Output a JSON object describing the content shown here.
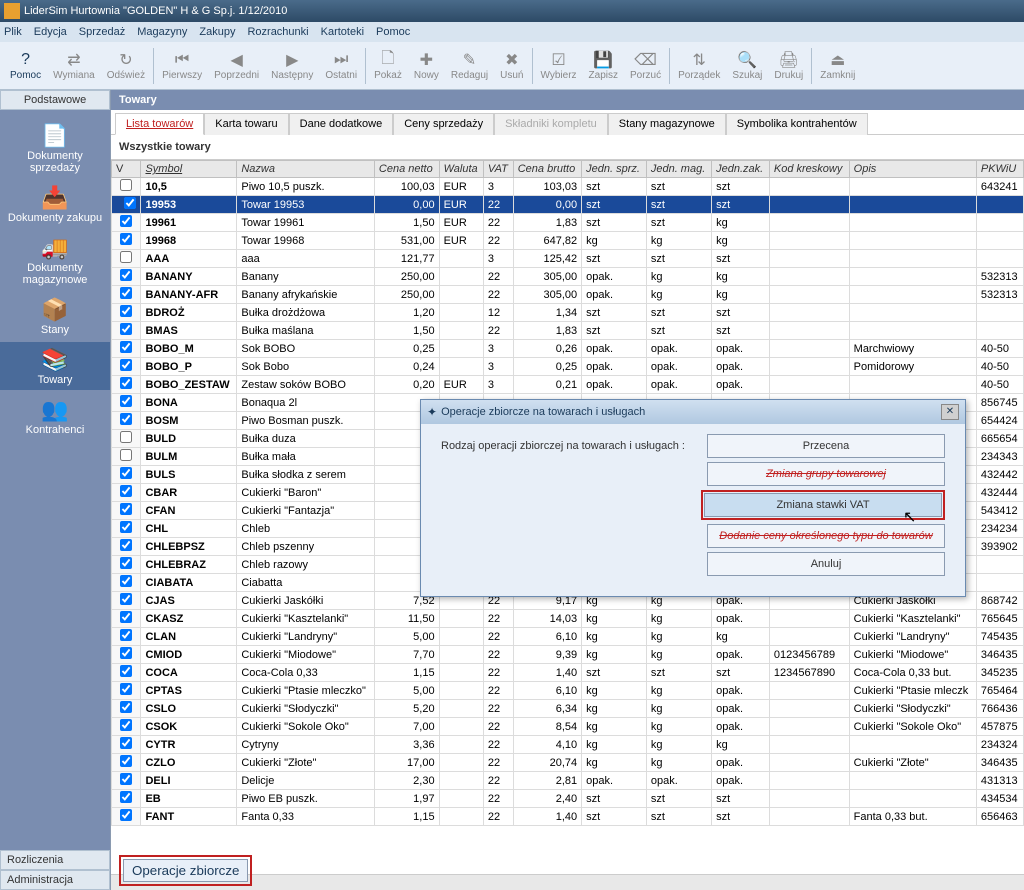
{
  "window": {
    "title": "LiderSim   Hurtownia \"GOLDEN\" H & G Sp.j. 1/12/2010"
  },
  "menu": [
    "Plik",
    "Edycja",
    "Sprzedaż",
    "Magazyny",
    "Zakupy",
    "Rozrachunki",
    "Kartoteki",
    "Pomoc"
  ],
  "toolbar": [
    {
      "label": "Pomoc",
      "active": true,
      "glyph": "?"
    },
    {
      "label": "Wymiana",
      "glyph": "⇄"
    },
    {
      "label": "Odśwież",
      "glyph": "↻"
    },
    {
      "sep": true
    },
    {
      "label": "Pierwszy",
      "glyph": "⏮"
    },
    {
      "label": "Poprzedni",
      "glyph": "◀"
    },
    {
      "label": "Następny",
      "glyph": "▶"
    },
    {
      "label": "Ostatni",
      "glyph": "⏭"
    },
    {
      "sep": true
    },
    {
      "label": "Pokaż",
      "glyph": "🗋"
    },
    {
      "label": "Nowy",
      "glyph": "✚"
    },
    {
      "label": "Redaguj",
      "glyph": "✎"
    },
    {
      "label": "Usuń",
      "glyph": "✖"
    },
    {
      "sep": true
    },
    {
      "label": "Wybierz",
      "glyph": "☑"
    },
    {
      "label": "Zapisz",
      "glyph": "💾"
    },
    {
      "label": "Porzuć",
      "glyph": "⌫"
    },
    {
      "sep": true
    },
    {
      "label": "Porządek",
      "glyph": "⇅"
    },
    {
      "label": "Szukaj",
      "glyph": "🔍"
    },
    {
      "label": "Drukuj",
      "glyph": "🖨"
    },
    {
      "sep": true
    },
    {
      "label": "Zamknij",
      "glyph": "⏏"
    }
  ],
  "sidebar": {
    "header": "Podstawowe",
    "items": [
      {
        "label": "Dokumenty sprzedaży",
        "glyph": "📄"
      },
      {
        "label": "Dokumenty zakupu",
        "glyph": "📥"
      },
      {
        "label": "Dokumenty magazynowe",
        "glyph": "🚚"
      },
      {
        "label": "Stany",
        "glyph": "📦"
      },
      {
        "label": "Towary",
        "glyph": "📚",
        "sel": true
      },
      {
        "label": "Kontrahenci",
        "glyph": "👥"
      }
    ],
    "footer": [
      "Rozliczenia",
      "Administracja"
    ]
  },
  "content": {
    "title": "Towary",
    "tabs": [
      {
        "label": "Lista towarów",
        "active": true
      },
      {
        "label": "Karta towaru"
      },
      {
        "label": "Dane dodatkowe"
      },
      {
        "label": "Ceny sprzedaży"
      },
      {
        "label": "Składniki kompletu",
        "disabled": true
      },
      {
        "label": "Stany magazynowe"
      },
      {
        "label": "Symbolika kontrahentów"
      }
    ],
    "subheader": "Wszystkie towary",
    "columns": [
      "V",
      "Symbol",
      "Nazwa",
      "Cena netto",
      "Waluta",
      "VAT",
      "Cena brutto",
      "Jedn. sprz.",
      "Jedn. mag.",
      "Jedn.zak.",
      "Kod kreskowy",
      "Opis",
      "PKWiU"
    ],
    "rows": [
      {
        "chk": false,
        "sym": "10,5",
        "naz": "Piwo 10,5 puszk.",
        "cn": "100,03",
        "wal": "EUR",
        "vat": "3",
        "cb": "103,03",
        "js": "szt",
        "jm": "szt",
        "jz": "szt",
        "kod": "",
        "opis": "",
        "pk": "643241"
      },
      {
        "chk": true,
        "sel": true,
        "sym": "19953",
        "naz": "Towar 19953",
        "cn": "0,00",
        "wal": "EUR",
        "vat": "22",
        "cb": "0,00",
        "js": "szt",
        "jm": "szt",
        "jz": "szt",
        "kod": "",
        "opis": "",
        "pk": ""
      },
      {
        "chk": true,
        "sym": "19961",
        "naz": "Towar 19961",
        "cn": "1,50",
        "wal": "EUR",
        "vat": "22",
        "cb": "1,83",
        "js": "szt",
        "jm": "szt",
        "jz": "kg",
        "kod": "",
        "opis": "",
        "pk": ""
      },
      {
        "chk": true,
        "sym": "19968",
        "naz": "Towar 19968",
        "cn": "531,00",
        "wal": "EUR",
        "vat": "22",
        "cb": "647,82",
        "js": "kg",
        "jm": "kg",
        "jz": "kg",
        "kod": "",
        "opis": "",
        "pk": ""
      },
      {
        "chk": false,
        "sym": "AAA",
        "naz": "aaa",
        "cn": "121,77",
        "wal": "",
        "vat": "3",
        "cb": "125,42",
        "js": "szt",
        "jm": "szt",
        "jz": "szt",
        "kod": "",
        "opis": "",
        "pk": ""
      },
      {
        "chk": true,
        "sym": "BANANY",
        "naz": "Banany",
        "cn": "250,00",
        "wal": "",
        "vat": "22",
        "cb": "305,00",
        "js": "opak.",
        "jm": "kg",
        "jz": "kg",
        "kod": "",
        "opis": "",
        "pk": "532313"
      },
      {
        "chk": true,
        "sym": "BANANY-AFR",
        "naz": "Banany afrykańskie",
        "cn": "250,00",
        "wal": "",
        "vat": "22",
        "cb": "305,00",
        "js": "opak.",
        "jm": "kg",
        "jz": "kg",
        "kod": "",
        "opis": "",
        "pk": "532313"
      },
      {
        "chk": true,
        "sym": "BDROŻ",
        "naz": "Bułka drożdżowa",
        "cn": "1,20",
        "wal": "",
        "vat": "12",
        "cb": "1,34",
        "js": "szt",
        "jm": "szt",
        "jz": "szt",
        "kod": "",
        "opis": "",
        "pk": ""
      },
      {
        "chk": true,
        "sym": "BMAS",
        "naz": "Bułka maślana",
        "cn": "1,50",
        "wal": "",
        "vat": "22",
        "cb": "1,83",
        "js": "szt",
        "jm": "szt",
        "jz": "szt",
        "kod": "",
        "opis": "",
        "pk": ""
      },
      {
        "chk": true,
        "sym": "BOBO_M",
        "naz": "Sok BOBO",
        "cn": "0,25",
        "wal": "",
        "vat": "3",
        "cb": "0,26",
        "js": "opak.",
        "jm": "opak.",
        "jz": "opak.",
        "kod": "",
        "opis": "Marchwiowy",
        "pk": "40-50"
      },
      {
        "chk": true,
        "sym": "BOBO_P",
        "naz": "Sok Bobo",
        "cn": "0,24",
        "wal": "",
        "vat": "3",
        "cb": "0,25",
        "js": "opak.",
        "jm": "opak.",
        "jz": "opak.",
        "kod": "",
        "opis": "Pomidorowy",
        "pk": "40-50"
      },
      {
        "chk": true,
        "sym": "BOBO_ZESTAW",
        "naz": "Zestaw soków BOBO",
        "cn": "0,20",
        "wal": "EUR",
        "vat": "3",
        "cb": "0,21",
        "js": "opak.",
        "jm": "opak.",
        "jz": "opak.",
        "kod": "",
        "opis": "",
        "pk": "40-50"
      },
      {
        "chk": true,
        "sym": "BONA",
        "naz": "Bonaqua 2l",
        "cn": "",
        "wal": "",
        "vat": "",
        "cb": "",
        "js": "",
        "jm": "",
        "jz": "",
        "kod": "",
        "opis": "",
        "pk": "856745"
      },
      {
        "chk": true,
        "sym": "BOSM",
        "naz": "Piwo Bosman puszk.",
        "cn": "",
        "wal": "",
        "vat": "",
        "cb": "",
        "js": "",
        "jm": "",
        "jz": "",
        "kod": "",
        "opis": "",
        "pk": "654424"
      },
      {
        "chk": false,
        "sym": "BULD",
        "naz": "Bułka duza",
        "cn": "",
        "wal": "",
        "vat": "",
        "cb": "",
        "js": "",
        "jm": "",
        "jz": "",
        "kod": "",
        "opis": "",
        "pk": "665654"
      },
      {
        "chk": false,
        "sym": "BULM",
        "naz": "Bułka mała",
        "cn": "",
        "wal": "",
        "vat": "",
        "cb": "",
        "js": "",
        "jm": "",
        "jz": "",
        "kod": "",
        "opis": "",
        "pk": "234343"
      },
      {
        "chk": true,
        "sym": "BULS",
        "naz": "Bułka słodka z serem",
        "cn": "",
        "wal": "",
        "vat": "",
        "cb": "",
        "js": "",
        "jm": "",
        "jz": "",
        "kod": "",
        "opis": "",
        "pk": "432442"
      },
      {
        "chk": true,
        "sym": "CBAR",
        "naz": "Cukierki \"Baron\"",
        "cn": "",
        "wal": "",
        "vat": "",
        "cb": "",
        "js": "",
        "jm": "",
        "jz": "",
        "kod": "",
        "opis": "",
        "pk": "432444"
      },
      {
        "chk": true,
        "sym": "CFAN",
        "naz": "Cukierki \"Fantazja\"",
        "cn": "",
        "wal": "",
        "vat": "",
        "cb": "",
        "js": "",
        "jm": "",
        "jz": "",
        "kod": "",
        "opis": "",
        "pk": "543412"
      },
      {
        "chk": true,
        "sym": "CHL",
        "naz": "Chleb",
        "cn": "",
        "wal": "",
        "vat": "",
        "cb": "",
        "js": "",
        "jm": "",
        "jz": "",
        "kod": "",
        "opis": "",
        "pk": "234234"
      },
      {
        "chk": true,
        "sym": "CHLEBPSZ",
        "naz": "Chleb pszenny",
        "cn": "",
        "wal": "",
        "vat": "",
        "cb": "",
        "js": "",
        "jm": "",
        "jz": "",
        "kod": "",
        "opis": "",
        "pk": "393902"
      },
      {
        "chk": true,
        "sym": "CHLEBRAZ",
        "naz": "Chleb razowy",
        "cn": "",
        "wal": "",
        "vat": "",
        "cb": "",
        "js": "",
        "jm": "",
        "jz": "",
        "kod": "",
        "opis": "",
        "pk": ""
      },
      {
        "chk": true,
        "sym": "CIABATA",
        "naz": "Ciabatta",
        "cn": "",
        "wal": "",
        "vat": "",
        "cb": "",
        "js": "",
        "jm": "",
        "jz": "",
        "kod": "",
        "opis": "",
        "pk": ""
      },
      {
        "chk": true,
        "sym": "CJAS",
        "naz": "Cukierki Jaskółki",
        "cn": "7,52",
        "wal": "",
        "vat": "22",
        "cb": "9,17",
        "js": "kg",
        "jm": "kg",
        "jz": "opak.",
        "kod": "",
        "opis": "Cukierki Jaskółki",
        "pk": "868742"
      },
      {
        "chk": true,
        "sym": "CKASZ",
        "naz": "Cukierki \"Kasztelanki\"",
        "cn": "11,50",
        "wal": "",
        "vat": "22",
        "cb": "14,03",
        "js": "kg",
        "jm": "kg",
        "jz": "opak.",
        "kod": "",
        "opis": "Cukierki \"Kasztelanki\"",
        "pk": "765645"
      },
      {
        "chk": true,
        "sym": "CLAN",
        "naz": "Cukierki \"Landryny\"",
        "cn": "5,00",
        "wal": "",
        "vat": "22",
        "cb": "6,10",
        "js": "kg",
        "jm": "kg",
        "jz": "kg",
        "kod": "",
        "opis": "Cukierki \"Landryny\"",
        "pk": "745435"
      },
      {
        "chk": true,
        "sym": "CMIOD",
        "naz": "Cukierki \"Miodowe\"",
        "cn": "7,70",
        "wal": "",
        "vat": "22",
        "cb": "9,39",
        "js": "kg",
        "jm": "kg",
        "jz": "opak.",
        "kod": "0123456789",
        "opis": "Cukierki \"Miodowe\"",
        "pk": "346435"
      },
      {
        "chk": true,
        "sym": "COCA",
        "naz": "Coca-Cola 0,33",
        "cn": "1,15",
        "wal": "",
        "vat": "22",
        "cb": "1,40",
        "js": "szt",
        "jm": "szt",
        "jz": "szt",
        "kod": "1234567890",
        "opis": "Coca-Cola 0,33 but.",
        "pk": "345235"
      },
      {
        "chk": true,
        "sym": "CPTAS",
        "naz": "Cukierki \"Ptasie mleczko\"",
        "cn": "5,00",
        "wal": "",
        "vat": "22",
        "cb": "6,10",
        "js": "kg",
        "jm": "kg",
        "jz": "opak.",
        "kod": "",
        "opis": "Cukierki \"Ptasie mleczk",
        "pk": "765464"
      },
      {
        "chk": true,
        "sym": "CSLO",
        "naz": "Cukierki \"Słodyczki\"",
        "cn": "5,20",
        "wal": "",
        "vat": "22",
        "cb": "6,34",
        "js": "kg",
        "jm": "kg",
        "jz": "opak.",
        "kod": "",
        "opis": "Cukierki \"Słodyczki\"",
        "pk": "766436"
      },
      {
        "chk": true,
        "sym": "CSOK",
        "naz": "Cukierki \"Sokole Oko\"",
        "cn": "7,00",
        "wal": "",
        "vat": "22",
        "cb": "8,54",
        "js": "kg",
        "jm": "kg",
        "jz": "opak.",
        "kod": "",
        "opis": "Cukierki \"Sokole Oko\"",
        "pk": "457875"
      },
      {
        "chk": true,
        "sym": "CYTR",
        "naz": "Cytryny",
        "cn": "3,36",
        "wal": "",
        "vat": "22",
        "cb": "4,10",
        "js": "kg",
        "jm": "kg",
        "jz": "kg",
        "kod": "",
        "opis": "",
        "pk": "234324"
      },
      {
        "chk": true,
        "sym": "CZLO",
        "naz": "Cukierki \"Złote\"",
        "cn": "17,00",
        "wal": "",
        "vat": "22",
        "cb": "20,74",
        "js": "kg",
        "jm": "kg",
        "jz": "opak.",
        "kod": "",
        "opis": "Cukierki \"Złote\"",
        "pk": "346435"
      },
      {
        "chk": true,
        "sym": "DELI",
        "naz": "Delicje",
        "cn": "2,30",
        "wal": "",
        "vat": "22",
        "cb": "2,81",
        "js": "opak.",
        "jm": "opak.",
        "jz": "opak.",
        "kod": "",
        "opis": "",
        "pk": "431313"
      },
      {
        "chk": true,
        "sym": "EB",
        "naz": "Piwo EB puszk.",
        "cn": "1,97",
        "wal": "",
        "vat": "22",
        "cb": "2,40",
        "js": "szt",
        "jm": "szt",
        "jz": "szt",
        "kod": "",
        "opis": "",
        "pk": "434534"
      },
      {
        "chk": true,
        "sym": "FANT",
        "naz": "Fanta 0,33",
        "cn": "1,15",
        "wal": "",
        "vat": "22",
        "cb": "1,40",
        "js": "szt",
        "jm": "szt",
        "jz": "szt",
        "kod": "",
        "opis": "Fanta 0,33 but.",
        "pk": "656463"
      }
    ],
    "bottom_button": "Operacje zbiorcze"
  },
  "dialog": {
    "title": "Operacje zbiorcze na towarach i usługach",
    "label": "Rodzaj operacji zbiorczej na towarach i usługach :",
    "buttons": [
      {
        "label": "Przecena"
      },
      {
        "label": "Zmiana grupy towarowej",
        "strike": true
      },
      {
        "label": "Zmiana stawki VAT",
        "hl": true,
        "hov": true
      },
      {
        "label": "Dodanie ceny określonego typu do towarów",
        "strike": true
      },
      {
        "label": "Anuluj"
      }
    ]
  }
}
